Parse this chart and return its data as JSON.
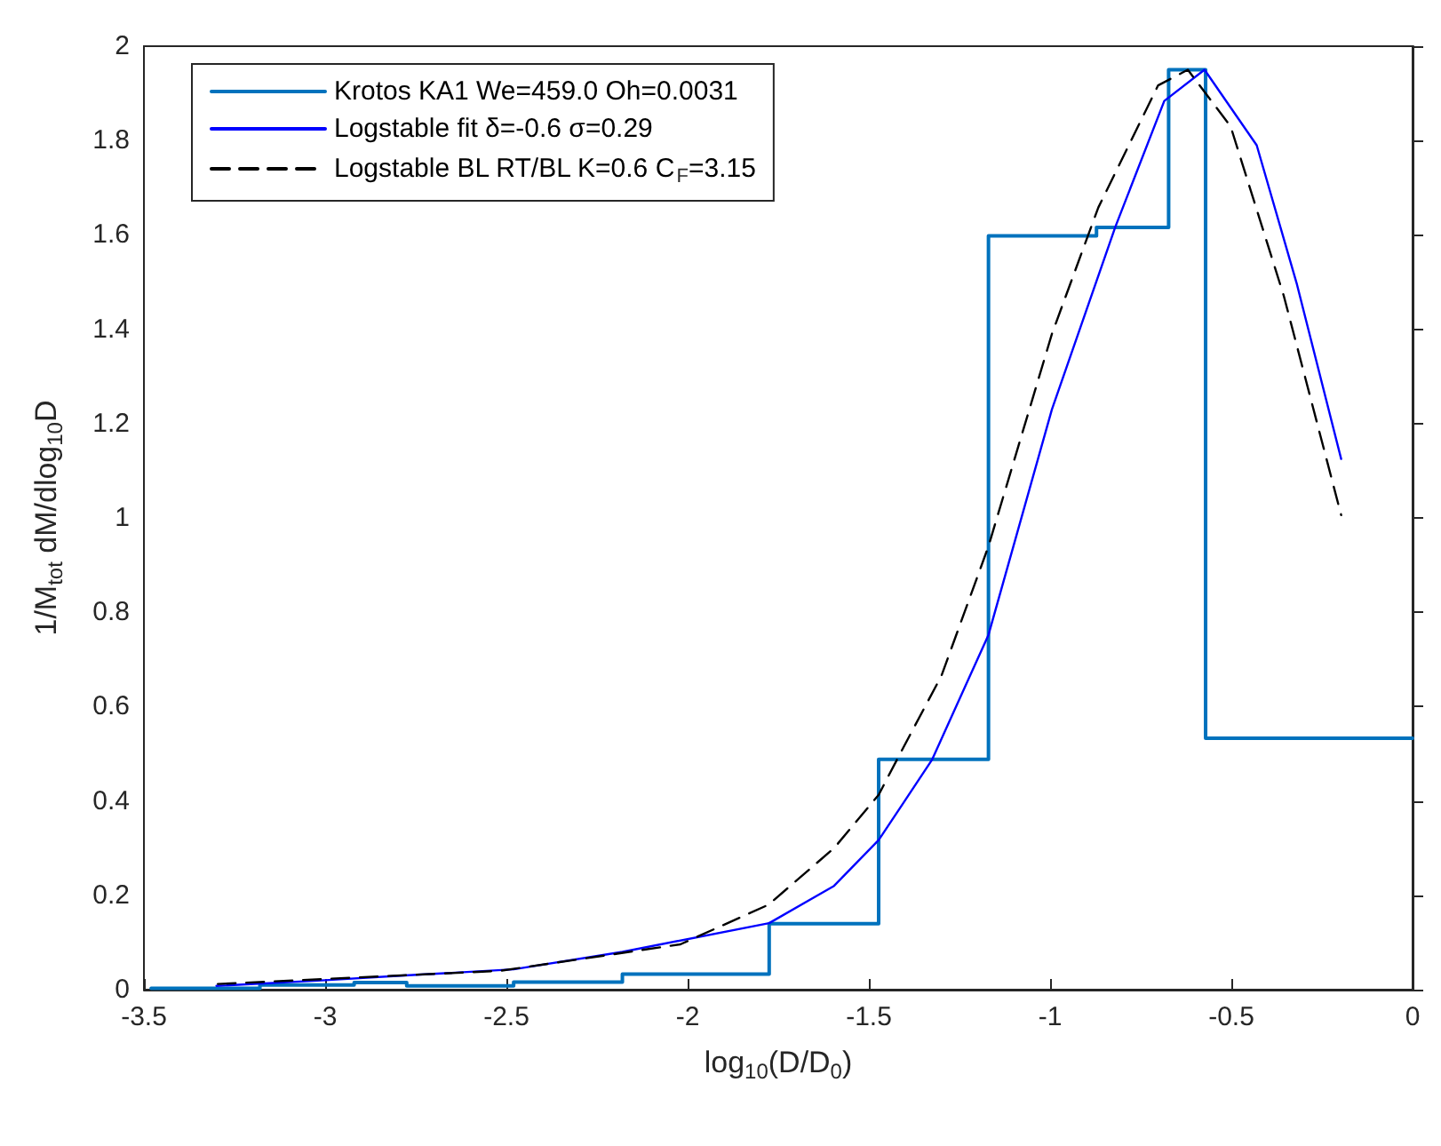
{
  "chart_data": {
    "type": "line",
    "xlabel": "log$_{10}$(D/D$_{0}$)",
    "ylabel": "1/M$_{tot}$ dM/dlog$_{10}$D",
    "xlim": [
      -3.5,
      0
    ],
    "xticks": [
      -3.5,
      -3,
      -2.5,
      -2,
      -1.5,
      -1,
      -0.5,
      0
    ],
    "ylim": [
      0,
      2
    ],
    "yticks": [
      0,
      0.2,
      0.4,
      0.6,
      0.8,
      1,
      1.2,
      1.4,
      1.6,
      1.8,
      2
    ],
    "grid": false,
    "legend": "top left",
    "marker": "none",
    "series": [
      {
        "name": "Krotos KA1 We=459.0 Oh=0.0031",
        "type": "step",
        "color": "#0072bd",
        "line_style": "solid",
        "x": [
          -3.48,
          -3.18,
          -2.92,
          -2.775,
          -2.48,
          -2.18,
          -1.775,
          -1.473,
          -1.17,
          -0.872,
          -0.673,
          -0.571,
          0
        ],
        "values": [
          0.003,
          0.01,
          0.015,
          0.008,
          0.016,
          0.033,
          0.14,
          0.488,
          1.598,
          1.616,
          1.95,
          0.533,
          0.533
        ]
      },
      {
        "name": "Logstable fit δ=-0.6 σ=0.29",
        "type": "line",
        "color": "#0000ff",
        "line_style": "solid",
        "x": [
          -3.3,
          -3.0,
          -2.78,
          -2.48,
          -2.18,
          -1.775,
          -1.596,
          -1.473,
          -1.326,
          -1.17,
          -0.995,
          -0.82,
          -0.685,
          -0.574,
          -0.43,
          -0.32,
          -0.197
        ],
        "values": [
          0.008,
          0.02,
          0.03,
          0.043,
          0.08,
          0.141,
          0.22,
          0.317,
          0.487,
          0.752,
          1.23,
          1.617,
          1.884,
          1.95,
          1.79,
          1.498,
          1.125
        ]
      },
      {
        "name": "Logstable BL RT/BL K=0.6 C$_{F}$=3.15",
        "type": "line",
        "color": "#000000",
        "line_style": "dashed",
        "x": [
          -3.296,
          -2.516,
          -2.02,
          -1.777,
          -1.596,
          -1.473,
          -1.414,
          -1.3,
          -1.17,
          -0.995,
          -0.867,
          -0.702,
          -0.62,
          -0.502,
          -0.355,
          -0.197
        ],
        "values": [
          0.012,
          0.04,
          0.096,
          0.18,
          0.3,
          0.413,
          0.5,
          0.665,
          0.94,
          1.39,
          1.658,
          1.917,
          1.95,
          1.83,
          1.47,
          1.006
        ]
      }
    ]
  }
}
